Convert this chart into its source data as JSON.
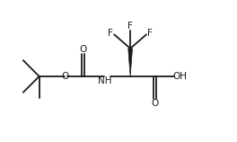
{
  "bg_color": "#ffffff",
  "line_color": "#1a1a1a",
  "line_width": 1.3,
  "font_size": 7.5,
  "figsize": [
    2.64,
    1.58
  ],
  "dpi": 100,
  "xlim": [
    0,
    11
  ],
  "ylim": [
    0,
    6.5
  ]
}
